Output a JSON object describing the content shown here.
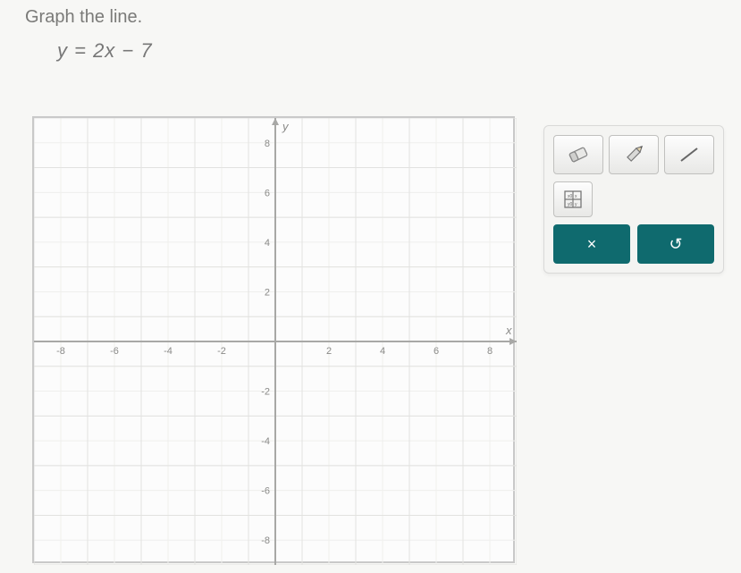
{
  "prompt": {
    "title": "Graph the line.",
    "equation": "y = 2x − 7"
  },
  "graph": {
    "background_color": "#fcfcfc",
    "border_color": "#c9c9c9",
    "grid_color": "#e2e2e0",
    "subgrid_color": "#efefed",
    "axis_color": "#a8a8a6",
    "label_color": "#8a8a88",
    "xlim": [
      -9,
      9
    ],
    "ylim": [
      -9,
      9
    ],
    "major_step": 2,
    "minor_step": 1,
    "x_tick_labels": [
      -8,
      -6,
      -4,
      -2,
      2,
      4,
      6,
      8
    ],
    "y_tick_labels": [
      -8,
      -6,
      -4,
      -2,
      2,
      4,
      6,
      8
    ],
    "x_axis_label": "x",
    "y_axis_label": "y",
    "tick_font_size": 11
  },
  "toolbox": {
    "tool_bg": "#ededeb",
    "panel_bg": "#f4f4f2",
    "panel_border": "#d9d9d8",
    "action_color": "#0f6a6e",
    "tools": [
      {
        "name": "eraser-icon"
      },
      {
        "name": "pencil-icon"
      },
      {
        "name": "line-icon"
      }
    ],
    "secondary_tools": [
      {
        "name": "grid-settings-icon"
      }
    ],
    "actions": {
      "clear_label": "×",
      "reset_label": "↺"
    }
  }
}
